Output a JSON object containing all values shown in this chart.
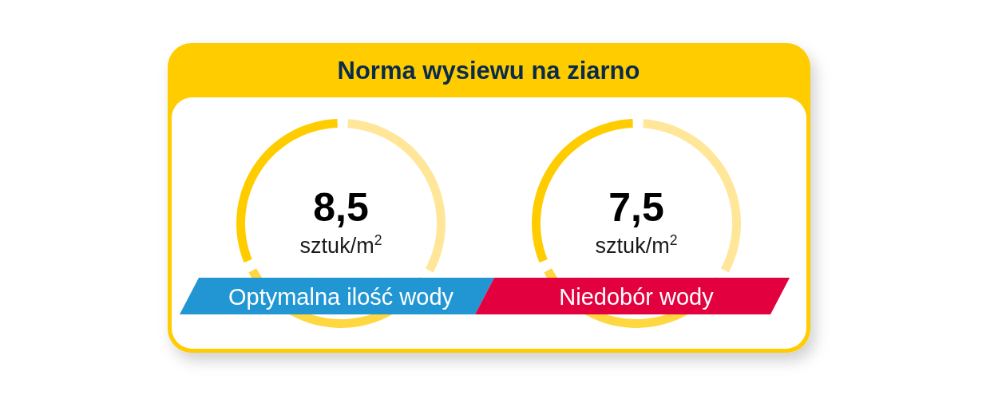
{
  "chart_data": {
    "type": "other",
    "title": "Norma wysiewu na ziarno",
    "categories": [
      "Optymalna ilość wody",
      "Niedobór wody"
    ],
    "values": [
      8.5,
      7.5
    ],
    "value_labels": [
      "8,5",
      "7,5"
    ],
    "ylabel": "sztuk/m$^{2}$"
  }
}
